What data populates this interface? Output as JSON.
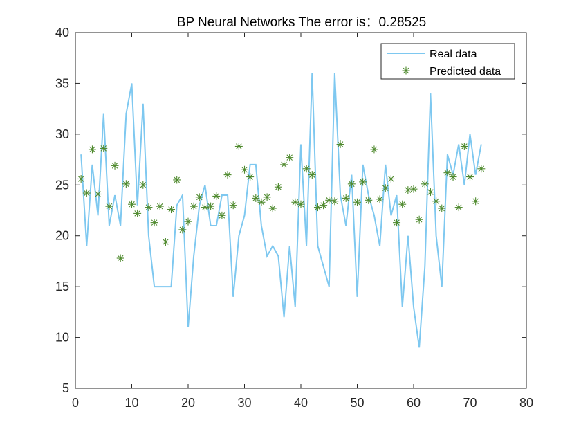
{
  "chart_data": {
    "type": "line",
    "title": "BP Neural Networks   The error is：0.28525",
    "xlabel": "",
    "ylabel": "",
    "xlim": [
      0,
      80
    ],
    "ylim": [
      5,
      40
    ],
    "xticks": [
      0,
      10,
      20,
      30,
      40,
      50,
      60,
      70,
      80
    ],
    "yticks": [
      5,
      10,
      15,
      20,
      25,
      30,
      35,
      40
    ],
    "grid": false,
    "legend_position": "top-right",
    "series": [
      {
        "name": "Real data",
        "style": "line",
        "color": "#7ec8f0",
        "x": [
          1,
          2,
          3,
          4,
          5,
          6,
          7,
          8,
          9,
          10,
          11,
          12,
          13,
          14,
          15,
          16,
          17,
          18,
          19,
          20,
          21,
          22,
          23,
          24,
          25,
          26,
          27,
          28,
          29,
          30,
          31,
          32,
          33,
          34,
          35,
          36,
          37,
          38,
          39,
          40,
          41,
          42,
          43,
          44,
          45,
          46,
          47,
          48,
          49,
          50,
          51,
          52,
          53,
          54,
          55,
          56,
          57,
          58,
          59,
          60,
          61,
          62,
          63,
          64,
          65,
          66,
          67,
          68,
          69,
          70,
          71,
          72
        ],
        "values": [
          28,
          19,
          27,
          22,
          32,
          21,
          24,
          21,
          32,
          35,
          23,
          33,
          20,
          15,
          15,
          15,
          15,
          23,
          24,
          11,
          18,
          23,
          25,
          21,
          21,
          24,
          24,
          14,
          20,
          22,
          27,
          27,
          21,
          18,
          19,
          18,
          12,
          19,
          13,
          29,
          19,
          36,
          19,
          17,
          15,
          36,
          24,
          21,
          26,
          14,
          27,
          24,
          22,
          19,
          27,
          22,
          24,
          13,
          20,
          13,
          9,
          17,
          34,
          20,
          15,
          28,
          26,
          29,
          25,
          30,
          26,
          29
        ]
      },
      {
        "name": "Predicted data",
        "style": "markers",
        "marker": "*",
        "color": "#4f8a2e",
        "x": [
          1,
          2,
          3,
          4,
          5,
          6,
          7,
          8,
          9,
          10,
          11,
          12,
          13,
          14,
          15,
          16,
          17,
          18,
          19,
          20,
          21,
          22,
          23,
          24,
          25,
          26,
          27,
          28,
          29,
          30,
          31,
          32,
          33,
          34,
          35,
          36,
          37,
          38,
          39,
          40,
          41,
          42,
          43,
          44,
          45,
          46,
          47,
          48,
          49,
          50,
          51,
          52,
          53,
          54,
          55,
          56,
          57,
          58,
          59,
          60,
          61,
          62,
          63,
          64,
          65,
          66,
          67,
          68,
          69,
          70,
          71,
          72
        ],
        "values": [
          25.6,
          24.2,
          28.5,
          24.1,
          28.6,
          22.9,
          26.9,
          17.8,
          25.1,
          23.1,
          22.2,
          25.0,
          22.8,
          21.3,
          22.9,
          19.4,
          22.6,
          25.5,
          20.6,
          21.4,
          22.9,
          23.8,
          22.8,
          22.9,
          23.9,
          22.0,
          26.0,
          23.0,
          28.8,
          26.5,
          25.8,
          23.7,
          23.3,
          23.8,
          22.7,
          24.8,
          27.0,
          27.7,
          23.3,
          23.1,
          26.6,
          26.0,
          22.8,
          23.0,
          23.5,
          23.4,
          29.0,
          23.7,
          25.1,
          23.3,
          25.3,
          23.5,
          28.5,
          23.6,
          24.7,
          25.6,
          21.3,
          23.1,
          24.5,
          24.6,
          21.6,
          25.1,
          24.3,
          23.4,
          22.7,
          26.2,
          25.8,
          22.8,
          28.8,
          25.8,
          23.4,
          26.6
        ]
      }
    ]
  }
}
